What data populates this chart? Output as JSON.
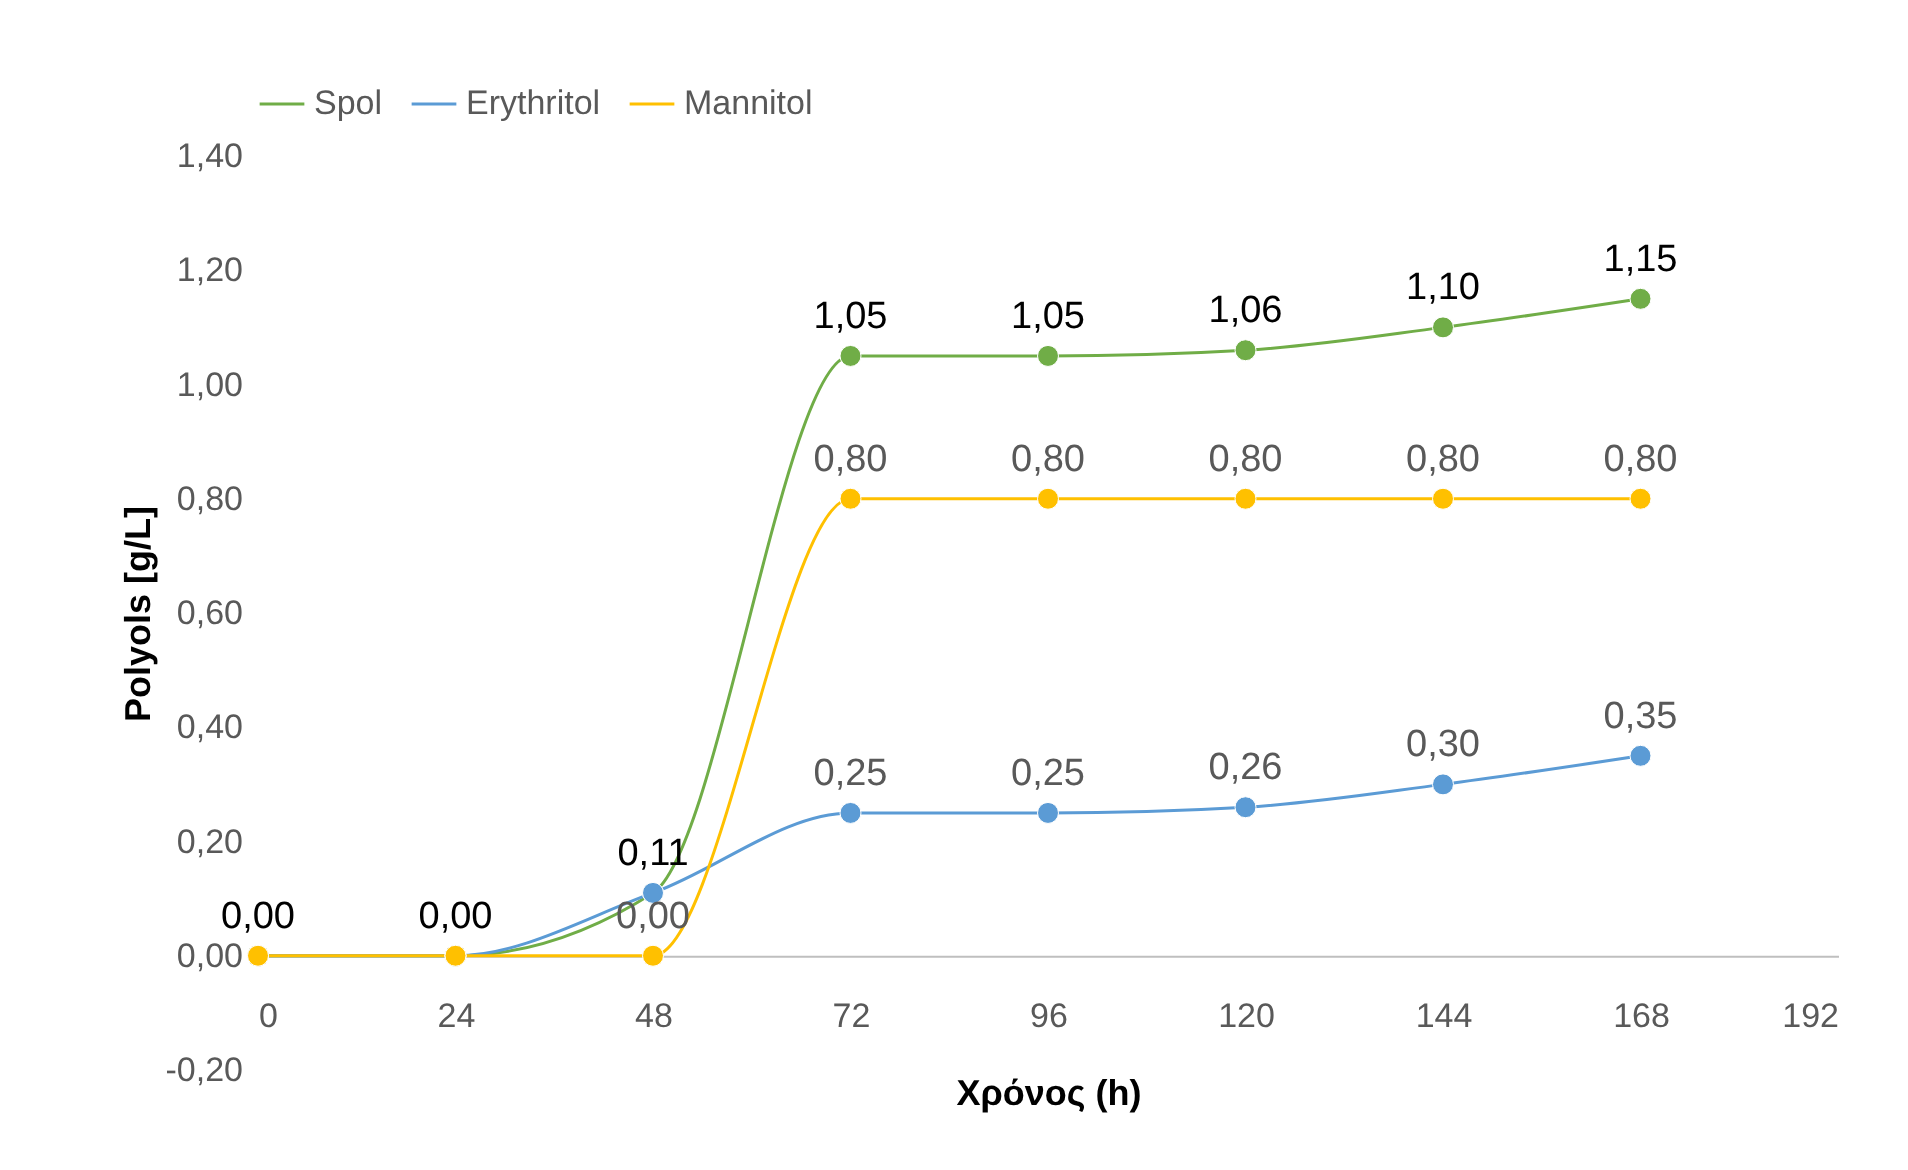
{
  "chart_data": {
    "type": "line",
    "xlabel": "Χρόνος (h)",
    "ylabel": "Polyols [g/L]",
    "x": [
      0,
      24,
      48,
      72,
      96,
      120,
      144,
      168
    ],
    "xlim": [
      0,
      192
    ],
    "xticks": [
      0,
      24,
      48,
      72,
      96,
      120,
      144,
      168,
      192
    ],
    "ylim": [
      -0.2,
      1.4
    ],
    "yticks": [
      {
        "value": -0.2,
        "label": "-0,20"
      },
      {
        "value": 0,
        "label": "0,00"
      },
      {
        "value": 0.2,
        "label": "0,20"
      },
      {
        "value": 0.4,
        "label": "0,40"
      },
      {
        "value": 0.6,
        "label": "0,60"
      },
      {
        "value": 0.8,
        "label": "0,80"
      },
      {
        "value": 1.0,
        "label": "1,00"
      },
      {
        "value": 1.2,
        "label": "1,20"
      },
      {
        "value": 1.4,
        "label": "1,40"
      }
    ],
    "legend": "top",
    "marker": "circle",
    "line_style": "solid",
    "series": [
      {
        "name": "Spol",
        "color": "#70ad47",
        "values": [
          0,
          0,
          0.11,
          1.05,
          1.05,
          1.06,
          1.1,
          1.15
        ],
        "value_labels": [
          "0,00",
          "0,00",
          "0,11",
          "1,05",
          "1,05",
          "1,06",
          "1,10",
          "1,15"
        ]
      },
      {
        "name": "Erythritol",
        "color": "#5b9bd5",
        "values": [
          0,
          0,
          0.11,
          0.25,
          0.25,
          0.26,
          0.3,
          0.35
        ],
        "value_labels": [
          null,
          null,
          null,
          "0,25",
          "0,25",
          "0,26",
          "0,30",
          "0,35"
        ]
      },
      {
        "name": "Mannitol",
        "color": "#ffc000",
        "values": [
          0,
          0,
          0,
          0.8,
          0.8,
          0.8,
          0.8,
          0.8
        ],
        "value_labels": [
          null,
          null,
          "0,00",
          "0,80",
          "0,80",
          "0,80",
          "0,80",
          "0,80"
        ]
      }
    ]
  }
}
